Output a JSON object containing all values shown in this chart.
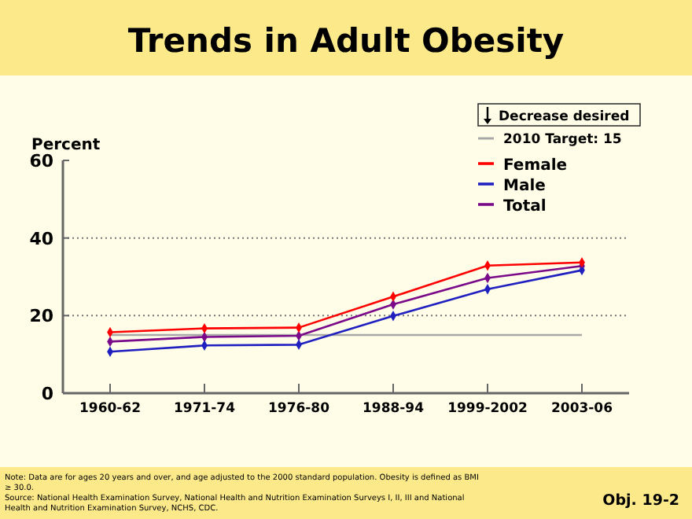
{
  "chart_data": {
    "type": "line",
    "title": "Trends in Adult Obesity",
    "ylabel": "Percent",
    "categories": [
      "1960-62",
      "1971-74",
      "1976-80",
      "1988-94",
      "1999-2002",
      "2003-06"
    ],
    "ylim": [
      0,
      60
    ],
    "yticks": [
      0,
      20,
      40,
      60
    ],
    "grid": "y",
    "marker": "diamond",
    "line_style": "solid",
    "legend": "top right",
    "series": [
      {
        "name": "Female",
        "color": "#ff0000",
        "values": [
          15.7,
          16.7,
          16.9,
          24.9,
          32.9,
          33.7
        ]
      },
      {
        "name": "Male",
        "color": "#2020c0",
        "values": [
          10.7,
          12.3,
          12.5,
          19.9,
          26.8,
          31.7
        ]
      },
      {
        "name": "Total",
        "color": "#7a0a8a",
        "values": [
          13.3,
          14.5,
          14.8,
          22.9,
          29.7,
          32.8
        ]
      }
    ],
    "ref_lines": [
      {
        "axis": "y",
        "value": 15,
        "label": "2010 Target: 15",
        "color": "#a8a8a8"
      }
    ],
    "annotations": [
      "Decrease desired",
      "Note: Data are for ages 20 years and over, and age adjusted to the 2000 standard population. Obesity is defined as BMI ≥ 30.0.",
      "Source: National Health Examination Survey, National Health and Nutrition Examination Surveys I, II, III and National Health and Nutrition Examination Survey, NCHS, CDC.",
      "Obj. 19-2"
    ]
  }
}
